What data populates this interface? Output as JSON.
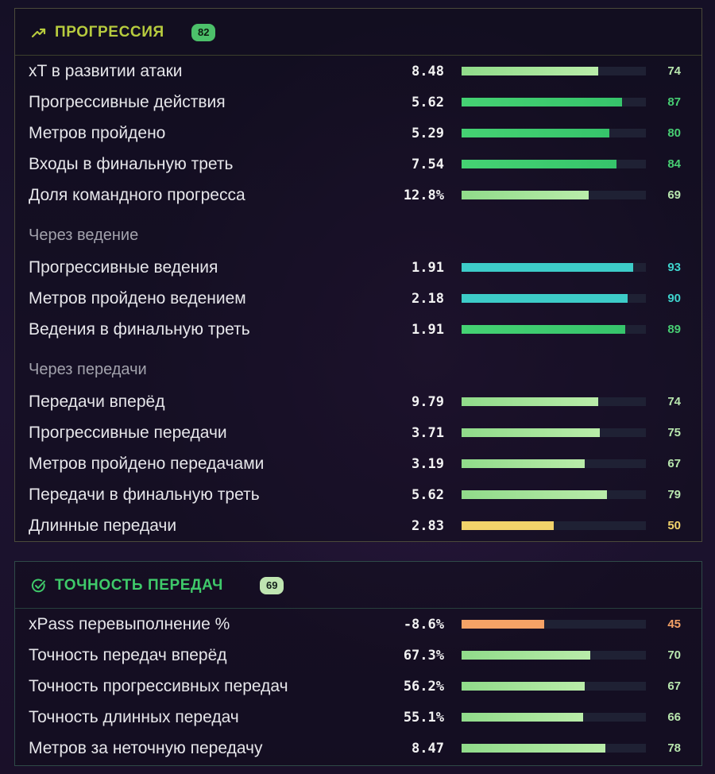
{
  "colors": {
    "light_green": "#a6e49f",
    "green": "#3ccf72",
    "cyan": "#3dccc8",
    "yellow": "#f2d36a",
    "orange": "#f5a266",
    "pct_light_green": "#b8e6ae",
    "pct_green": "#47cd73",
    "pct_cyan": "#3ed3cd",
    "pct_yellow": "#f1d36c",
    "pct_orange": "#f5a266"
  },
  "progression": {
    "title": "ПРОГРЕССИЯ",
    "icon": "trending-up-icon",
    "badge": "82",
    "rows": [
      {
        "label": "xT в развитии атаки",
        "value": "8.48",
        "pct": 74,
        "tone": "light_green"
      },
      {
        "label": "Прогрессивные действия",
        "value": "5.62",
        "pct": 87,
        "tone": "green"
      },
      {
        "label": "Метров пройдено",
        "value": "5.29",
        "pct": 80,
        "tone": "green"
      },
      {
        "label": "Входы в финальную треть",
        "value": "7.54",
        "pct": 84,
        "tone": "green"
      },
      {
        "label": "Доля командного прогресса",
        "value": "12.8%",
        "pct": 69,
        "tone": "light_green"
      }
    ],
    "dribble_section": {
      "title": "Через ведение",
      "rows": [
        {
          "label": "Прогрессивные ведения",
          "value": "1.91",
          "pct": 93,
          "tone": "cyan"
        },
        {
          "label": "Метров пройдено ведением",
          "value": "2.18",
          "pct": 90,
          "tone": "cyan"
        },
        {
          "label": "Ведения в финальную треть",
          "value": "1.91",
          "pct": 89,
          "tone": "green"
        }
      ]
    },
    "pass_section": {
      "title": "Через передачи",
      "rows": [
        {
          "label": "Передачи вперёд",
          "value": "9.79",
          "pct": 74,
          "tone": "light_green"
        },
        {
          "label": "Прогрессивные передачи",
          "value": "3.71",
          "pct": 75,
          "tone": "light_green"
        },
        {
          "label": "Метров пройдено передачами",
          "value": "3.19",
          "pct": 67,
          "tone": "light_green"
        },
        {
          "label": "Передачи в финальную треть",
          "value": "5.62",
          "pct": 79,
          "tone": "light_green"
        },
        {
          "label": "Длинные передачи",
          "value": "2.83",
          "pct": 50,
          "tone": "yellow"
        }
      ]
    }
  },
  "accuracy": {
    "title": "ТОЧНОСТЬ ПЕРЕДАЧ",
    "icon": "check-circle-icon",
    "badge": "69",
    "rows": [
      {
        "label": "xPass перевыполнение %",
        "value": "-8.6%",
        "pct": 45,
        "tone": "orange"
      },
      {
        "label": "Точность передач вперёд",
        "value": "67.3%",
        "pct": 70,
        "tone": "light_green"
      },
      {
        "label": "Точность прогрессивных передач",
        "value": "56.2%",
        "pct": 67,
        "tone": "light_green"
      },
      {
        "label": "Точность длинных передач",
        "value": "55.1%",
        "pct": 66,
        "tone": "light_green"
      },
      {
        "label": "Метров за неточную передачу",
        "value": "8.47",
        "pct": 78,
        "tone": "light_green"
      }
    ]
  }
}
